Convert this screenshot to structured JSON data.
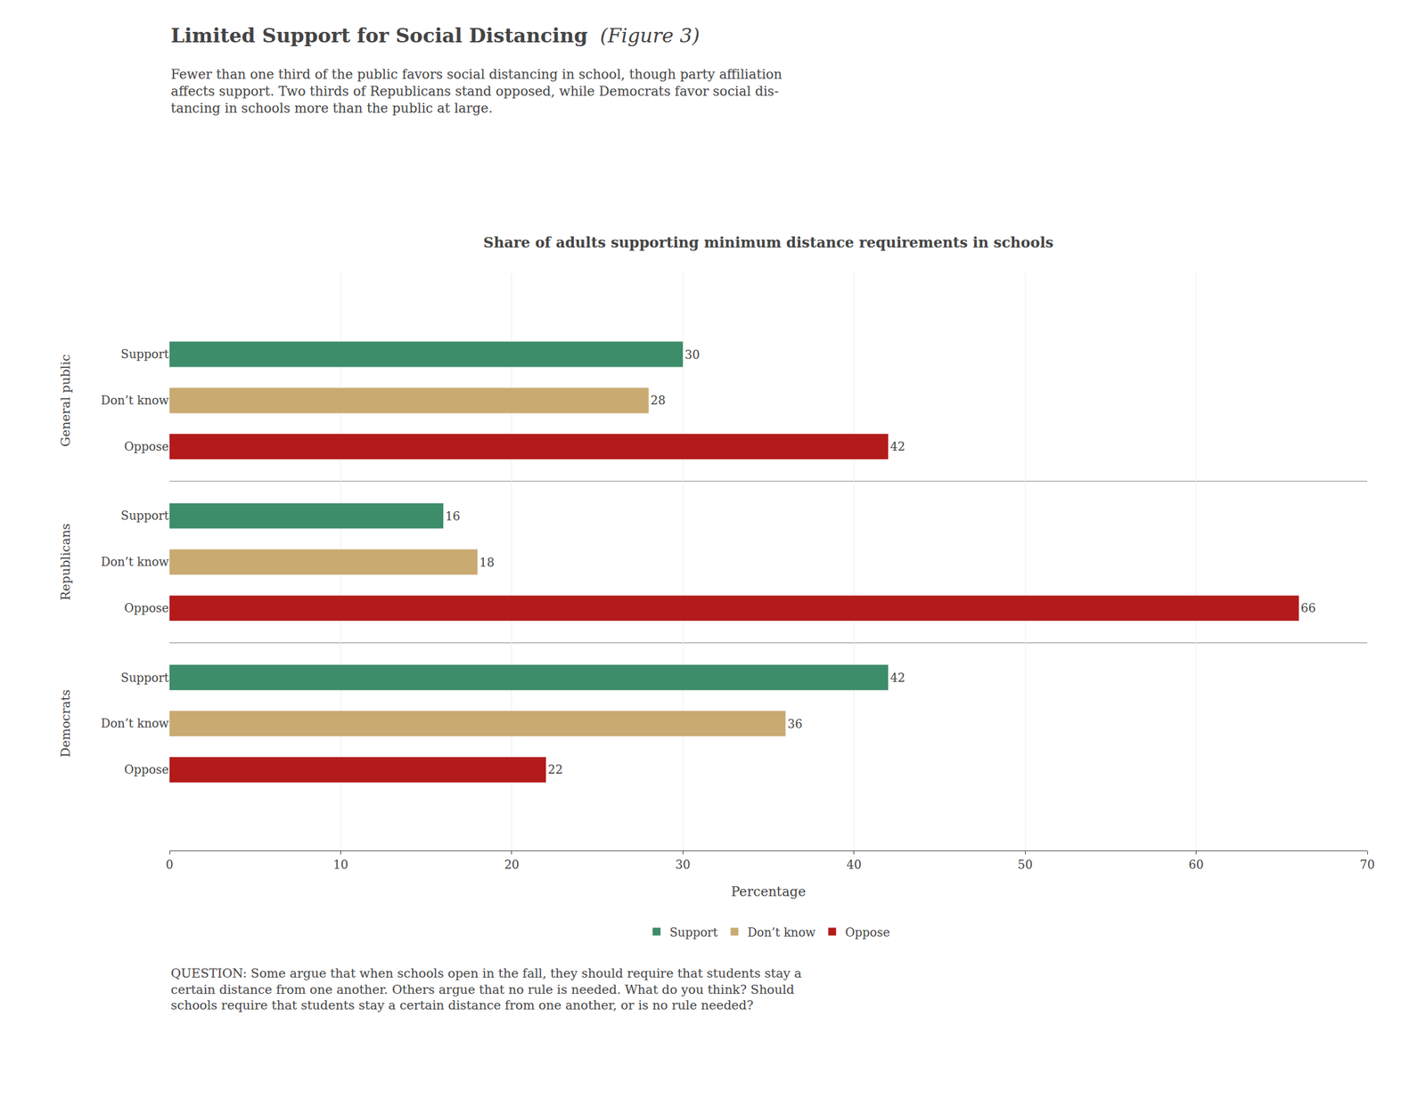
{
  "chart_data": {
    "type": "bar",
    "orientation": "horizontal",
    "title": "Share of adults supporting minimum distance requirements in schools",
    "subtitle": "Fewer than one third of the public favors social distancing in school, though party affiliation\naffects support. Two thirds of Republicans stand opposed, while Democrats favor social dis-\ntancing in schools more than the public at large.",
    "annotations": [
      "Limited Support for Social Distancing",
      "(Figure 3)",
      "QUESTION: Some argue that when schools open in the fall, they should require that students stay a\ncertain distance from one another. Others argue that no rule is needed. What do you think? Should\nschools require that students stay a certain distance from one another, or is no rule needed?"
    ],
    "categories": [
      "General public",
      "Republicans",
      "Democrats"
    ],
    "series": [
      {
        "name": "Support",
        "color": "#3d8c6a",
        "values": [
          30,
          16,
          42
        ]
      },
      {
        "name": "Don’t know",
        "color": "#c9aa71",
        "values": [
          28,
          18,
          36
        ]
      },
      {
        "name": "Oppose",
        "color": "#b31b1b",
        "values": [
          42,
          66,
          22
        ]
      }
    ],
    "xlabel": "Percentage",
    "xlim": [
      0,
      70
    ],
    "xticks": [
      0,
      10,
      20,
      30,
      40,
      50,
      60,
      70
    ],
    "grid": true,
    "legend": "bottom",
    "data_labels": true
  }
}
